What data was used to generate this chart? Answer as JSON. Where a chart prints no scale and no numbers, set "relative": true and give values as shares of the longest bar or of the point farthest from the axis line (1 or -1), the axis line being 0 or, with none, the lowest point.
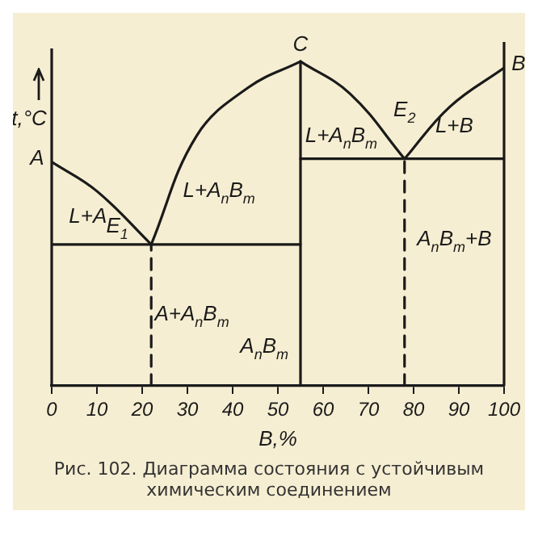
{
  "chart_data": {
    "type": "line",
    "relative": true,
    "title": "Рис. 102. Диаграмма состояния с устойчивым химическим соединением",
    "xlabel": "B,%",
    "ylabel": "t,°C",
    "xlim": [
      0,
      100
    ],
    "xticks": [
      0,
      10,
      20,
      30,
      40,
      50,
      60,
      70,
      80,
      90,
      100
    ],
    "grid": false,
    "legend": false,
    "marker": "none",
    "series": [
      {
        "color": "#1a1a1a",
        "x": [
          0,
          10,
          22
        ],
        "values": [
          0.69,
          0.6,
          0.436
        ]
      },
      {
        "color": "#1a1a1a",
        "x": [
          22,
          32,
          43.5,
          55
        ],
        "values": [
          0.436,
          0.77,
          0.92,
          1
        ]
      },
      {
        "color": "#1a1a1a",
        "x": [
          55,
          66,
          78
        ],
        "values": [
          1,
          0.9,
          0.7
        ]
      },
      {
        "color": "#1a1a1a",
        "x": [
          78,
          88,
          100
        ],
        "values": [
          0.7,
          0.86,
          0.98
        ]
      },
      {
        "color": "#1a1a1a",
        "x": [
          0,
          55
        ],
        "values": [
          0.436,
          0.436
        ]
      },
      {
        "color": "#1a1a1a",
        "x": [
          55,
          100
        ],
        "values": [
          0.7,
          0.7
        ]
      },
      {
        "color": "#1a1a1a",
        "x": [
          55,
          55
        ],
        "values": [
          0,
          1
        ]
      },
      {
        "color": "#1a1a1a",
        "line_style": "dashed",
        "x": [
          22,
          22
        ],
        "values": [
          0,
          0.436
        ]
      },
      {
        "color": "#1a1a1a",
        "line_style": "dashed",
        "x": [
          78,
          78
        ],
        "values": [
          0,
          0.7
        ]
      }
    ],
    "annotations": [
      {
        "text": "A",
        "x": 0,
        "y": 0.69
      },
      {
        "text": "E$_{1}$",
        "x": 22,
        "y": 0.436
      },
      {
        "text": "C",
        "x": 55,
        "y": 1
      },
      {
        "text": "E$_{2}$",
        "x": 78,
        "y": 0.7
      },
      {
        "text": "B",
        "x": 100,
        "y": 0.98
      },
      "L+A",
      "L+A$_{n}$B$_{m}$",
      "L+A$_{n}$B$_{m}$",
      "L+B",
      "A+A$_{n}$B$_{m}$",
      "A$_{n}$B$_{m}$",
      "A$_{n}$B$_{m}$+B"
    ]
  }
}
